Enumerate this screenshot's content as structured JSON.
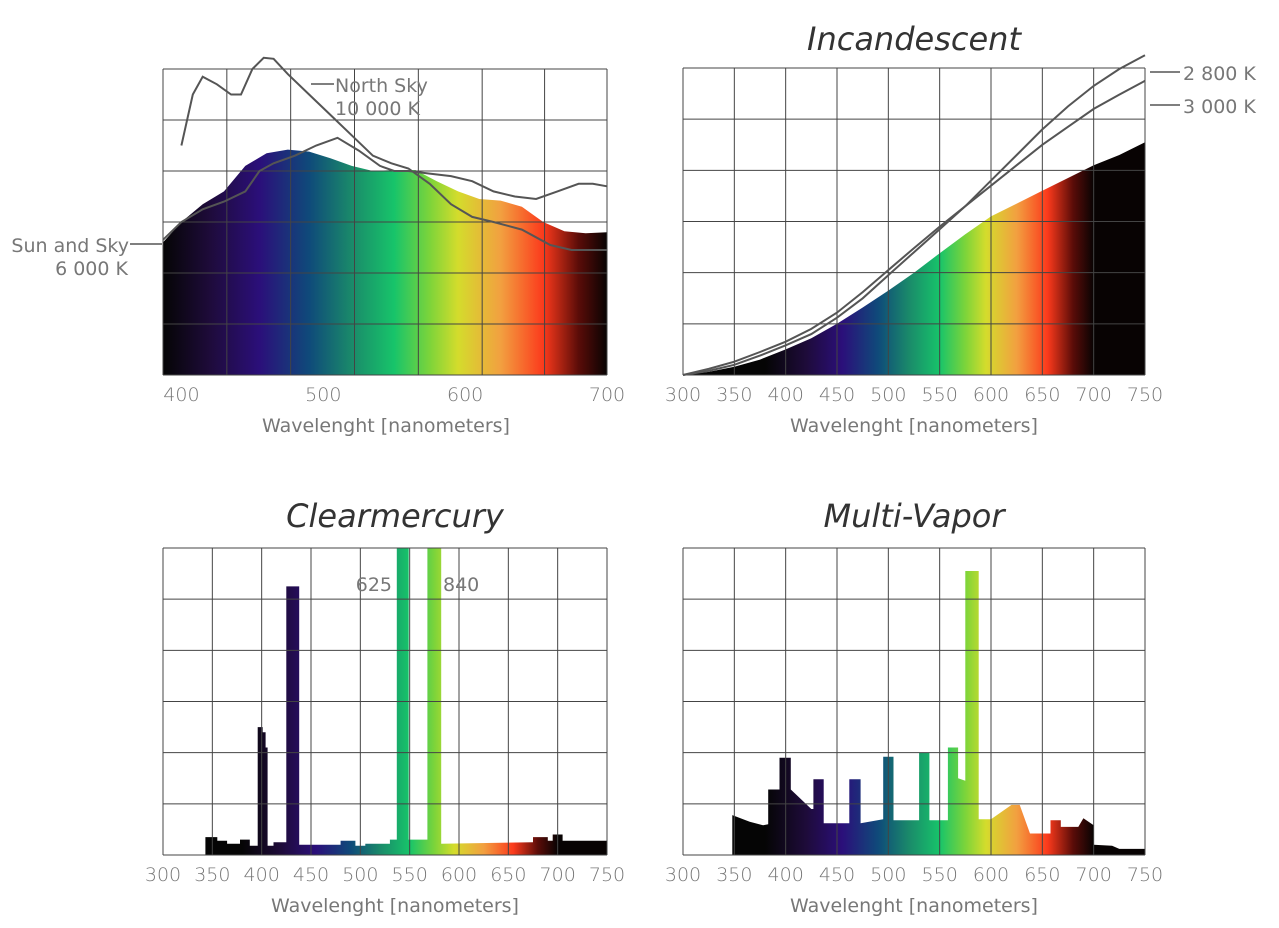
{
  "colors": {
    "grid": "#444444",
    "text": "#777777",
    "title": "#333333",
    "curve": "#555555"
  },
  "spectrum_gradient": [
    {
      "nm": 380,
      "color": "#050505"
    },
    {
      "nm": 420,
      "color": "#1e0b3a"
    },
    {
      "nm": 455,
      "color": "#2b0f7a"
    },
    {
      "nm": 490,
      "color": "#0f4a7a"
    },
    {
      "nm": 520,
      "color": "#1a8a6a"
    },
    {
      "nm": 550,
      "color": "#17c46a"
    },
    {
      "nm": 575,
      "color": "#7cd43a"
    },
    {
      "nm": 595,
      "color": "#d4dc2c"
    },
    {
      "nm": 625,
      "color": "#f2a040"
    },
    {
      "nm": 655,
      "color": "#fb3a1c"
    },
    {
      "nm": 680,
      "color": "#5a0c08"
    },
    {
      "nm": 700,
      "color": "#080303"
    }
  ],
  "chart_data": [
    {
      "id": "daylight",
      "type": "area",
      "title": "",
      "xlabel": "Wavelenght [nanometers]",
      "xlim": [
        387,
        700
      ],
      "ylim": [
        0,
        6
      ],
      "x_ticks": [
        "400",
        "500",
        "600",
        "700"
      ],
      "x_tick_values": [
        400,
        500,
        600,
        700
      ],
      "grid_x": [
        387,
        432,
        477,
        522,
        567,
        612,
        656,
        700
      ],
      "grid_rows": 6,
      "fill": [
        [
          387,
          2.6
        ],
        [
          400,
          3.0
        ],
        [
          415,
          3.35
        ],
        [
          430,
          3.6
        ],
        [
          445,
          4.1
        ],
        [
          460,
          4.35
        ],
        [
          475,
          4.42
        ],
        [
          490,
          4.38
        ],
        [
          505,
          4.25
        ],
        [
          520,
          4.1
        ],
        [
          535,
          4.0
        ],
        [
          550,
          4.02
        ],
        [
          565,
          4.02
        ],
        [
          580,
          3.8
        ],
        [
          595,
          3.6
        ],
        [
          610,
          3.45
        ],
        [
          625,
          3.42
        ],
        [
          640,
          3.3
        ],
        [
          655,
          3.0
        ],
        [
          670,
          2.82
        ],
        [
          685,
          2.78
        ],
        [
          700,
          2.8
        ]
      ],
      "curves": [
        {
          "name": "North Sky 10 000 K",
          "points": [
            [
              400,
              4.5
            ],
            [
              408,
              5.5
            ],
            [
              415,
              5.85
            ],
            [
              425,
              5.7
            ],
            [
              435,
              5.5
            ],
            [
              442,
              5.5
            ],
            [
              450,
              6.0
            ],
            [
              458,
              6.22
            ],
            [
              465,
              6.2
            ],
            [
              475,
              5.9
            ],
            [
              490,
              5.5
            ],
            [
              505,
              5.1
            ],
            [
              520,
              4.7
            ],
            [
              535,
              4.3
            ],
            [
              548,
              4.15
            ],
            [
              560,
              4.05
            ],
            [
              575,
              3.75
            ],
            [
              590,
              3.35
            ],
            [
              605,
              3.1
            ],
            [
              620,
              3.0
            ],
            [
              640,
              2.85
            ],
            [
              660,
              2.55
            ],
            [
              675,
              2.45
            ],
            [
              690,
              2.45
            ],
            [
              700,
              2.45
            ]
          ]
        },
        {
          "name": "Sun and Sky 6 000 K",
          "points": [
            [
              387,
              2.65
            ],
            [
              400,
              3.0
            ],
            [
              415,
              3.25
            ],
            [
              430,
              3.4
            ],
            [
              445,
              3.6
            ],
            [
              455,
              4.0
            ],
            [
              465,
              4.15
            ],
            [
              480,
              4.3
            ],
            [
              495,
              4.5
            ],
            [
              510,
              4.65
            ],
            [
              525,
              4.4
            ],
            [
              540,
              4.1
            ],
            [
              550,
              4.0
            ],
            [
              560,
              4.0
            ],
            [
              575,
              3.95
            ],
            [
              590,
              3.9
            ],
            [
              605,
              3.8
            ],
            [
              620,
              3.6
            ],
            [
              635,
              3.5
            ],
            [
              650,
              3.45
            ],
            [
              665,
              3.6
            ],
            [
              680,
              3.75
            ],
            [
              690,
              3.75
            ],
            [
              700,
              3.7
            ]
          ]
        }
      ],
      "annotations": [
        {
          "lines": [
            "North Sky",
            "10 000 K"
          ]
        },
        {
          "lines": [
            "Sun and Sky",
            "6 000 K"
          ]
        }
      ]
    },
    {
      "id": "incandescent",
      "type": "area",
      "title": "Incandescent",
      "xlabel": "Wavelenght [nanometers]",
      "xlim": [
        300,
        750
      ],
      "ylim": [
        0,
        6
      ],
      "x_ticks": [
        "300",
        "350",
        "400",
        "450",
        "500",
        "550",
        "600",
        "650",
        "700",
        "750"
      ],
      "x_tick_values": [
        300,
        350,
        400,
        450,
        500,
        550,
        600,
        650,
        700,
        750
      ],
      "grid_x": [
        300,
        350,
        400,
        450,
        500,
        550,
        600,
        650,
        700,
        750
      ],
      "grid_rows": 6,
      "fill": [
        [
          300,
          0.0
        ],
        [
          325,
          0.06
        ],
        [
          350,
          0.16
        ],
        [
          375,
          0.3
        ],
        [
          400,
          0.5
        ],
        [
          425,
          0.72
        ],
        [
          450,
          1.0
        ],
        [
          475,
          1.32
        ],
        [
          500,
          1.65
        ],
        [
          525,
          2.0
        ],
        [
          550,
          2.38
        ],
        [
          575,
          2.75
        ],
        [
          600,
          3.1
        ],
        [
          625,
          3.35
        ],
        [
          650,
          3.6
        ],
        [
          675,
          3.85
        ],
        [
          700,
          4.1
        ],
        [
          725,
          4.3
        ],
        [
          750,
          4.55
        ]
      ],
      "curves": [
        {
          "name": "2 800 K",
          "points": [
            [
              300,
              0.0
            ],
            [
              325,
              0.08
            ],
            [
              350,
              0.2
            ],
            [
              375,
              0.38
            ],
            [
              400,
              0.58
            ],
            [
              425,
              0.8
            ],
            [
              450,
              1.12
            ],
            [
              475,
              1.5
            ],
            [
              500,
              1.95
            ],
            [
              525,
              2.4
            ],
            [
              550,
              2.85
            ],
            [
              575,
              3.3
            ],
            [
              600,
              3.8
            ],
            [
              625,
              4.3
            ],
            [
              650,
              4.8
            ],
            [
              675,
              5.25
            ],
            [
              700,
              5.65
            ],
            [
              725,
              5.98
            ],
            [
              750,
              6.25
            ]
          ]
        },
        {
          "name": "3 000 K",
          "points": [
            [
              300,
              0.0
            ],
            [
              325,
              0.12
            ],
            [
              350,
              0.26
            ],
            [
              375,
              0.45
            ],
            [
              400,
              0.65
            ],
            [
              425,
              0.9
            ],
            [
              450,
              1.22
            ],
            [
              475,
              1.62
            ],
            [
              500,
              2.05
            ],
            [
              525,
              2.48
            ],
            [
              550,
              2.9
            ],
            [
              575,
              3.3
            ],
            [
              600,
              3.7
            ],
            [
              625,
              4.1
            ],
            [
              650,
              4.5
            ],
            [
              675,
              4.85
            ],
            [
              700,
              5.2
            ],
            [
              725,
              5.48
            ],
            [
              750,
              5.75
            ]
          ]
        }
      ],
      "annotations": [
        {
          "lines": [
            "2 800 K"
          ]
        },
        {
          "lines": [
            "3 000 K"
          ]
        }
      ]
    },
    {
      "id": "clearmercury",
      "type": "bar",
      "title": "Clearmercury",
      "xlabel": "Wavelenght [nanometers]",
      "xlim": [
        300,
        750
      ],
      "ylim": [
        0,
        6
      ],
      "x_ticks": [
        "300",
        "350",
        "400",
        "450",
        "500",
        "550",
        "600",
        "650",
        "700",
        "750"
      ],
      "x_tick_values": [
        300,
        350,
        400,
        450,
        500,
        550,
        600,
        650,
        700,
        750
      ],
      "grid_x": [
        300,
        350,
        400,
        450,
        500,
        550,
        600,
        650,
        700,
        750
      ],
      "grid_rows": 6,
      "fill": [
        [
          343,
          0.0
        ],
        [
          343,
          0.35
        ],
        [
          355,
          0.35
        ],
        [
          355,
          0.28
        ],
        [
          365,
          0.28
        ],
        [
          365,
          0.22
        ],
        [
          378,
          0.22
        ],
        [
          378,
          0.3
        ],
        [
          388,
          0.3
        ],
        [
          388,
          0.18
        ],
        [
          396,
          0.18
        ],
        [
          396,
          2.5
        ],
        [
          401,
          2.5
        ],
        [
          401,
          2.4
        ],
        [
          404,
          2.4
        ],
        [
          404,
          2.1
        ],
        [
          406,
          2.1
        ],
        [
          406,
          0.18
        ],
        [
          412,
          0.18
        ],
        [
          412,
          0.25
        ],
        [
          425,
          0.25
        ],
        [
          425,
          5.25
        ],
        [
          438,
          5.25
        ],
        [
          438,
          0.2
        ],
        [
          480,
          0.2
        ],
        [
          480,
          0.28
        ],
        [
          495,
          0.28
        ],
        [
          495,
          0.18
        ],
        [
          505,
          0.18
        ],
        [
          505,
          0.22
        ],
        [
          530,
          0.22
        ],
        [
          530,
          0.3
        ],
        [
          537,
          0.3
        ],
        [
          537,
          6.0
        ],
        [
          549,
          6.0
        ],
        [
          549,
          0.3
        ],
        [
          568,
          0.3
        ],
        [
          568,
          6.0
        ],
        [
          582,
          6.0
        ],
        [
          582,
          0.22
        ],
        [
          675,
          0.25
        ],
        [
          675,
          0.35
        ],
        [
          690,
          0.35
        ],
        [
          690,
          0.28
        ],
        [
          695,
          0.28
        ],
        [
          695,
          0.4
        ],
        [
          705,
          0.4
        ],
        [
          705,
          0.28
        ],
        [
          750,
          0.28
        ],
        [
          750,
          0.0
        ]
      ],
      "annotations": [
        {
          "text": "625"
        },
        {
          "text": "840"
        }
      ]
    },
    {
      "id": "multivapor",
      "type": "bar",
      "title": "Multi-Vapor",
      "xlabel": "Wavelenght [nanometers]",
      "xlim": [
        300,
        750
      ],
      "ylim": [
        0,
        6
      ],
      "x_ticks": [
        "300",
        "350",
        "400",
        "450",
        "500",
        "550",
        "600",
        "650",
        "700",
        "750"
      ],
      "x_tick_values": [
        300,
        350,
        400,
        450,
        500,
        550,
        600,
        650,
        700,
        750
      ],
      "grid_x": [
        300,
        350,
        400,
        450,
        500,
        550,
        600,
        650,
        700,
        750
      ],
      "grid_rows": 6,
      "fill": [
        [
          348,
          0.0
        ],
        [
          348,
          0.78
        ],
        [
          365,
          0.65
        ],
        [
          378,
          0.58
        ],
        [
          383,
          0.6
        ],
        [
          383,
          1.28
        ],
        [
          394,
          1.28
        ],
        [
          394,
          1.9
        ],
        [
          405,
          1.9
        ],
        [
          405,
          1.28
        ],
        [
          425,
          0.9
        ],
        [
          427,
          0.9
        ],
        [
          427,
          1.48
        ],
        [
          437,
          1.48
        ],
        [
          437,
          0.62
        ],
        [
          462,
          0.62
        ],
        [
          462,
          1.48
        ],
        [
          473,
          1.48
        ],
        [
          473,
          0.62
        ],
        [
          495,
          0.7
        ],
        [
          495,
          1.92
        ],
        [
          505,
          1.92
        ],
        [
          505,
          0.68
        ],
        [
          530,
          0.68
        ],
        [
          530,
          2.0
        ],
        [
          540,
          2.0
        ],
        [
          540,
          0.68
        ],
        [
          558,
          0.68
        ],
        [
          558,
          2.1
        ],
        [
          568,
          2.1
        ],
        [
          568,
          1.5
        ],
        [
          575,
          1.45
        ],
        [
          575,
          5.55
        ],
        [
          588,
          5.55
        ],
        [
          588,
          0.7
        ],
        [
          600,
          0.7
        ],
        [
          620,
          0.98
        ],
        [
          628,
          0.98
        ],
        [
          638,
          0.42
        ],
        [
          658,
          0.42
        ],
        [
          658,
          0.68
        ],
        [
          668,
          0.68
        ],
        [
          668,
          0.55
        ],
        [
          685,
          0.55
        ],
        [
          690,
          0.72
        ],
        [
          700,
          0.58
        ],
        [
          700,
          0.2
        ],
        [
          718,
          0.18
        ],
        [
          725,
          0.12
        ],
        [
          745,
          0.12
        ],
        [
          750,
          0.12
        ],
        [
          750,
          0.0
        ]
      ]
    }
  ]
}
